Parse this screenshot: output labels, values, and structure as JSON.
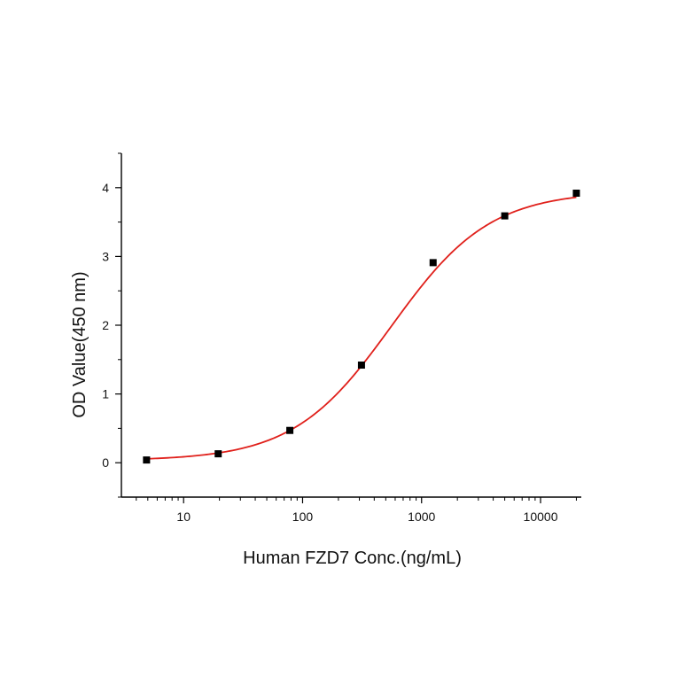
{
  "chart_data": {
    "type": "scatter",
    "title": "",
    "xlabel": "Human FZD7 Conc.(ng/mL)",
    "ylabel": "OD Value(450 nm)",
    "x_scale": "log",
    "xlim": [
      3,
      22000
    ],
    "ylim": [
      -0.5,
      4.5
    ],
    "x_ticks": [
      10,
      100,
      1000,
      10000
    ],
    "x_tick_labels": [
      "10",
      "100",
      "1000",
      "10000"
    ],
    "y_ticks": [
      0,
      1,
      2,
      3,
      4
    ],
    "y_tick_labels": [
      "0",
      "1",
      "2",
      "3",
      "4"
    ],
    "grid": false,
    "legend": "none",
    "series": [
      {
        "marker": "square",
        "color": "#000000",
        "x": [
          4.88,
          19.53,
          78.13,
          312.5,
          1250,
          5000,
          20000
        ],
        "y": [
          0.04,
          0.13,
          0.47,
          1.42,
          2.91,
          3.59,
          3.92
        ]
      }
    ],
    "fit_curve": {
      "model": "4PL",
      "color": "#e0201b",
      "bottom": 0.03,
      "top": 3.95,
      "ec50": 560,
      "hill": 1.05,
      "x_range": [
        4.88,
        20000
      ]
    }
  }
}
